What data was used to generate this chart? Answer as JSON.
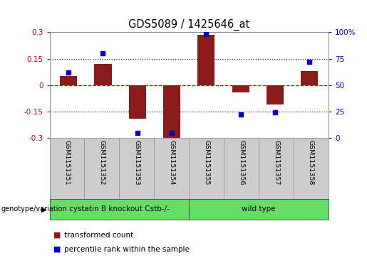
{
  "title": "GDS5089 / 1425646_at",
  "samples": [
    "GSM1151351",
    "GSM1151352",
    "GSM1151353",
    "GSM1151354",
    "GSM1151355",
    "GSM1151356",
    "GSM1151357",
    "GSM1151358"
  ],
  "bar_values": [
    0.05,
    0.12,
    -0.19,
    -0.305,
    0.285,
    -0.04,
    -0.11,
    0.08
  ],
  "scatter_pct": [
    62,
    80,
    5,
    5,
    98,
    22,
    24,
    72
  ],
  "bar_color": "#8B1A1A",
  "scatter_color": "#0000CC",
  "ylim": [
    -0.3,
    0.3
  ],
  "yticks_left": [
    -0.3,
    -0.15,
    0.0,
    0.15,
    0.3
  ],
  "ytick_labels_left": [
    "-0.3",
    "-0.15",
    "0",
    "0.15",
    "0.3"
  ],
  "y2ticks": [
    0,
    25,
    50,
    75,
    100
  ],
  "y2ticklabels": [
    "0",
    "25",
    "50",
    "75",
    "100%"
  ],
  "hlines_dotted": [
    0.15,
    -0.15
  ],
  "hline_zero_color": "#CC0000",
  "hline_dotted_color": "#333333",
  "group1_label": "cystatin B knockout Cstb-/-",
  "group2_label": "wild type",
  "group_color": "#66DD66",
  "group_label_prefix": "genotype/variation",
  "legend_bar_label": "transformed count",
  "legend_scatter_label": "percentile rank within the sample",
  "plot_bg_color": "#FFFFFF",
  "outer_bg_color": "#FFFFFF",
  "ylabel_left_color": "#CC0000",
  "ylabel_right_color": "#0000CC",
  "sample_box_color": "#CCCCCC",
  "bar_width": 0.5,
  "tick_label_fontsize": 7.5,
  "title_fontsize": 10.5,
  "sample_fontsize": 6.8,
  "group_fontsize": 7.5,
  "legend_fontsize": 7.5
}
